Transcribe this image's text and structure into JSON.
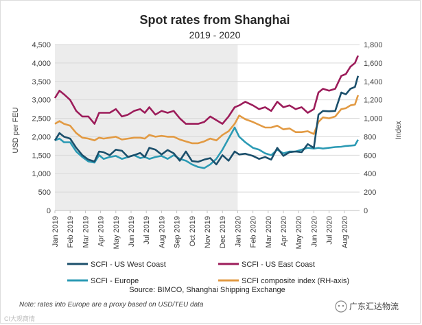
{
  "chart_data": {
    "type": "line",
    "title": "Spot rates from Shanghai",
    "subtitle": "2019 - 2020",
    "ylabel": "USD per FEU",
    "y2label": "Index",
    "ylim": [
      0,
      4500
    ],
    "y2lim": [
      0,
      1800
    ],
    "yticks": [
      "0",
      "500",
      "1,000",
      "1,500",
      "2,000",
      "2,500",
      "3,000",
      "3,500",
      "4,000",
      "4,500"
    ],
    "y2ticks": [
      "0",
      "200",
      "400",
      "600",
      "800",
      "1,000",
      "1,200",
      "1,400",
      "1,600",
      "1,800"
    ],
    "x_range": [
      0,
      20
    ],
    "x_tick_labels": [
      "Jan 2019",
      "Feb 2019",
      "Mar 2019",
      "Apr 2019",
      "May 2019",
      "Jun 2019",
      "Jul 2019",
      "Aug 2019",
      "Sep 2019",
      "Oct 2019",
      "Nov 2019",
      "Dec 2019",
      "Jan 2020",
      "Feb 2020",
      "Mar 2020",
      "Apr 2020",
      "May 2020",
      "Jun 2020",
      "Jul 2020",
      "Aug 2020"
    ],
    "shaded_period": [
      0,
      12
    ],
    "series": [
      {
        "name": "SCFI - US West Coast",
        "axis": "left",
        "color": "#1b4f6b",
        "x": [
          0,
          0.3,
          0.6,
          1,
          1.4,
          1.8,
          2.2,
          2.6,
          2.9,
          3.2,
          3.6,
          4,
          4.4,
          4.8,
          5.2,
          5.6,
          5.9,
          6.2,
          6.6,
          7,
          7.4,
          7.8,
          8.2,
          8.6,
          9,
          9.4,
          9.8,
          10.2,
          10.6,
          11,
          11.4,
          11.8,
          12.1,
          12.5,
          13,
          13.4,
          13.8,
          14.2,
          14.6,
          15,
          15.4,
          15.8,
          16.2,
          16.6,
          17,
          17.3,
          17.6,
          18,
          18.4,
          18.8,
          19.1,
          19.4,
          19.7,
          19.9
        ],
        "values": [
          1900,
          2100,
          2000,
          1950,
          1700,
          1500,
          1380,
          1330,
          1600,
          1580,
          1500,
          1650,
          1620,
          1450,
          1500,
          1560,
          1450,
          1700,
          1650,
          1520,
          1640,
          1550,
          1350,
          1600,
          1340,
          1320,
          1380,
          1420,
          1250,
          1500,
          1350,
          1600,
          1520,
          1540,
          1480,
          1400,
          1450,
          1380,
          1700,
          1480,
          1580,
          1600,
          1580,
          1800,
          1700,
          2600,
          2700,
          2690,
          2700,
          3200,
          3150,
          3300,
          3350,
          3650
        ]
      },
      {
        "name": "SCFI - US East Coast",
        "axis": "left",
        "color": "#9c1c5a",
        "x": [
          0,
          0.3,
          0.6,
          1,
          1.4,
          1.8,
          2.2,
          2.6,
          2.9,
          3.2,
          3.6,
          4,
          4.4,
          4.8,
          5.2,
          5.6,
          5.9,
          6.2,
          6.6,
          7,
          7.4,
          7.8,
          8.2,
          8.6,
          9,
          9.4,
          9.8,
          10.2,
          10.6,
          11,
          11.4,
          11.8,
          12.1,
          12.5,
          13,
          13.4,
          13.8,
          14.2,
          14.6,
          15,
          15.4,
          15.8,
          16.2,
          16.6,
          17,
          17.3,
          17.6,
          18,
          18.4,
          18.8,
          19.1,
          19.4,
          19.7,
          19.9
        ],
        "values": [
          3050,
          3250,
          3150,
          3000,
          2700,
          2550,
          2550,
          2350,
          2650,
          2650,
          2650,
          2750,
          2550,
          2600,
          2700,
          2750,
          2650,
          2800,
          2600,
          2700,
          2650,
          2700,
          2500,
          2350,
          2350,
          2350,
          2400,
          2550,
          2450,
          2350,
          2550,
          2800,
          2850,
          2950,
          2850,
          2750,
          2800,
          2700,
          2950,
          2800,
          2850,
          2750,
          2800,
          2650,
          2750,
          3200,
          3300,
          3250,
          3300,
          3650,
          3700,
          3900,
          4000,
          4200
        ]
      },
      {
        "name": "SCFI - Europe",
        "axis": "left",
        "color": "#2b9ab4",
        "x": [
          0,
          0.3,
          0.6,
          1,
          1.4,
          1.8,
          2.2,
          2.6,
          2.9,
          3.2,
          3.6,
          4,
          4.4,
          4.8,
          5.2,
          5.6,
          5.9,
          6.2,
          6.6,
          7,
          7.4,
          7.8,
          8.2,
          8.6,
          9,
          9.4,
          9.8,
          10.2,
          10.6,
          11,
          11.4,
          11.8,
          12.1,
          12.5,
          13,
          13.4,
          13.8,
          14.2,
          14.6,
          15,
          15.4,
          15.8,
          16.2,
          16.6,
          17,
          17.3,
          17.6,
          18,
          18.4,
          18.8,
          19.1,
          19.4,
          19.7,
          19.9
        ],
        "values": [
          1900,
          1950,
          1850,
          1850,
          1600,
          1450,
          1330,
          1300,
          1500,
          1400,
          1450,
          1480,
          1400,
          1450,
          1500,
          1420,
          1450,
          1400,
          1450,
          1480,
          1400,
          1500,
          1400,
          1350,
          1250,
          1180,
          1150,
          1250,
          1400,
          1650,
          1950,
          2250,
          2000,
          1850,
          1700,
          1650,
          1550,
          1500,
          1650,
          1550,
          1600,
          1600,
          1650,
          1700,
          1680,
          1700,
          1680,
          1700,
          1720,
          1730,
          1750,
          1760,
          1770,
          1920
        ]
      },
      {
        "name": "SCFI composite index (RH-axis)",
        "axis": "right",
        "color": "#e29a43",
        "x": [
          0,
          0.3,
          0.6,
          1,
          1.4,
          1.8,
          2.2,
          2.6,
          2.9,
          3.2,
          3.6,
          4,
          4.4,
          4.8,
          5.2,
          5.6,
          5.9,
          6.2,
          6.6,
          7,
          7.4,
          7.8,
          8.2,
          8.6,
          9,
          9.4,
          9.8,
          10.2,
          10.6,
          11,
          11.4,
          11.8,
          12.1,
          12.5,
          13,
          13.4,
          13.8,
          14.2,
          14.6,
          15,
          15.4,
          15.8,
          16.2,
          16.6,
          17,
          17.3,
          17.6,
          18,
          18.4,
          18.8,
          19.1,
          19.4,
          19.7,
          19.9
        ],
        "values": [
          940,
          970,
          940,
          920,
          840,
          790,
          780,
          760,
          790,
          780,
          790,
          800,
          770,
          780,
          790,
          790,
          780,
          820,
          800,
          810,
          800,
          800,
          770,
          750,
          730,
          730,
          750,
          780,
          760,
          820,
          860,
          940,
          1030,
          990,
          960,
          930,
          900,
          900,
          920,
          880,
          890,
          850,
          850,
          860,
          830,
          960,
          1010,
          1000,
          1020,
          1100,
          1110,
          1140,
          1150,
          1250
        ]
      }
    ]
  },
  "note": "Note: rates into Europe are a proxy based on USD/TEU data",
  "source": "Source: BIMCO, Shanghai Shipping Exchange",
  "watermark": "广东汇达物流",
  "logo_text": "CI大观商情"
}
